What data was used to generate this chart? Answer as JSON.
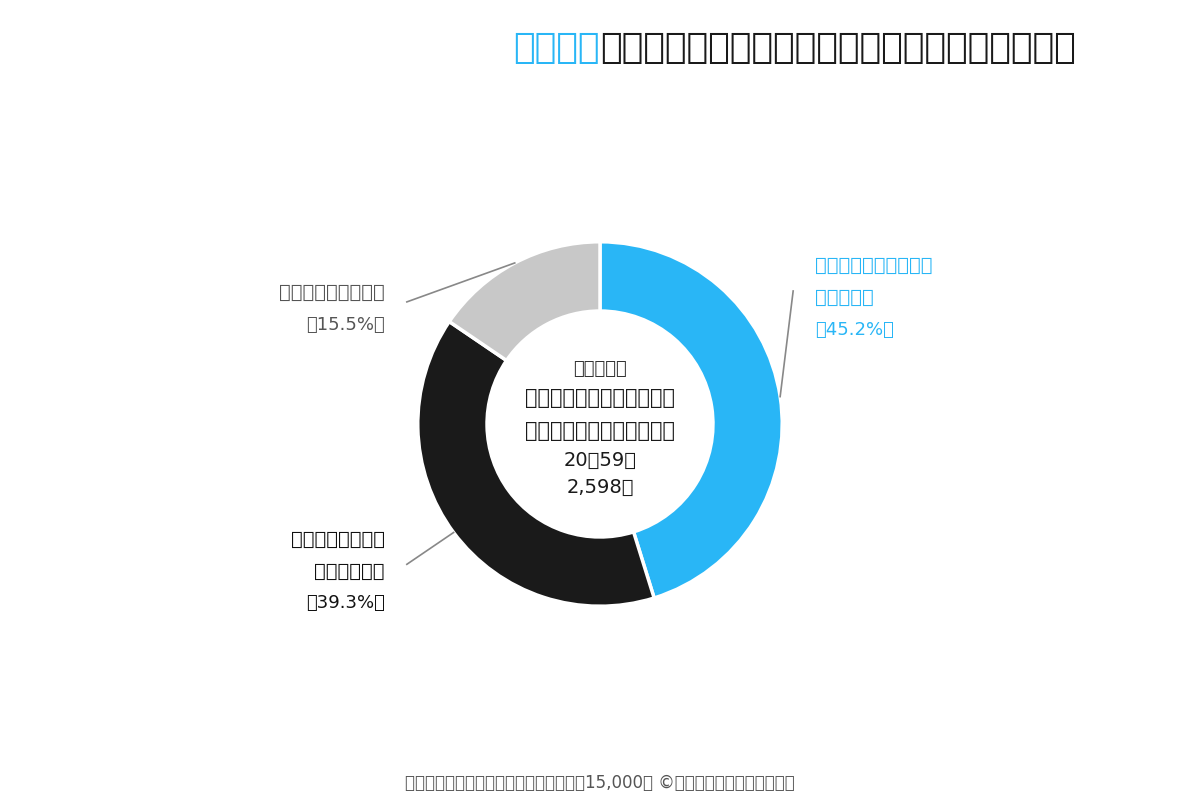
{
  "title_part1": "【男性】",
  "title_part2": "セカンドパートナーはプラトニックと知ってる？",
  "title_color1": "#29b6f6",
  "title_color2": "#1a1a1a",
  "title_fontsize": 26,
  "slices": [
    45.2,
    39.3,
    15.5
  ],
  "colors": [
    "#29b6f6",
    "#1a1a1a",
    "#c8c8c8"
  ],
  "center_line1": "【対象者】",
  "center_line2": "セカンドパートナーという",
  "center_line3": "言葉を知っている既婚男性",
  "center_line4": "20〜59歳",
  "center_line5": "2,598人",
  "footer": "（「セカンドパートナー実態調査：対象15,000人 ©レゾンデートル株式会社）",
  "footer_fontsize": 12,
  "bg_color": "#ffffff"
}
